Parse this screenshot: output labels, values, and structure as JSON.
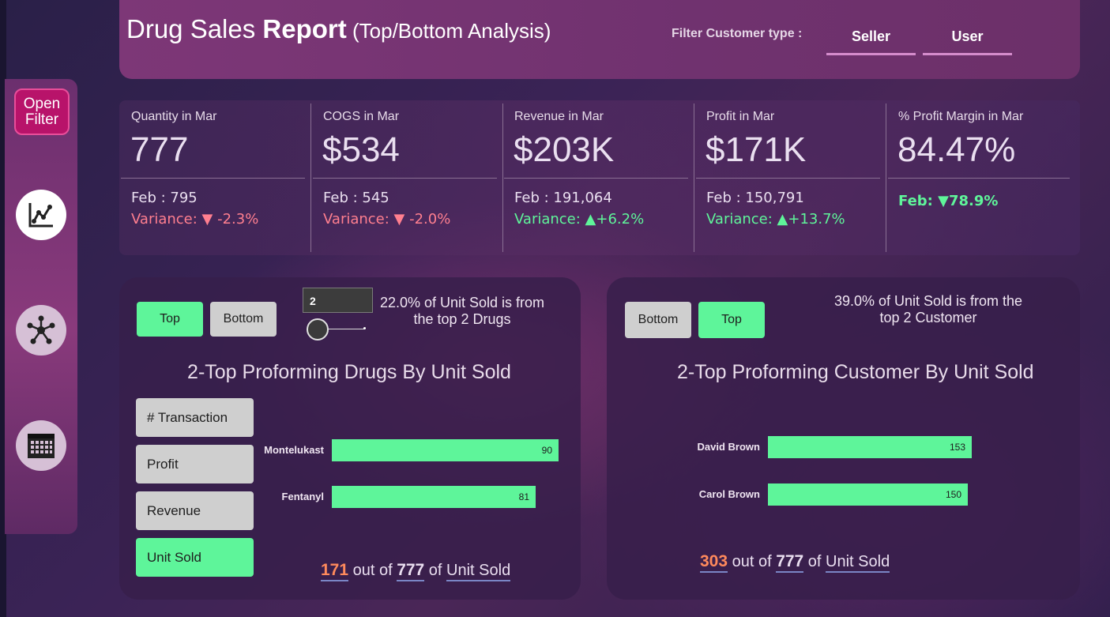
{
  "header": {
    "title_main": "Drug Sales ",
    "title_bold": "Report",
    "title_sub": " (Top/Bottom Analysis)",
    "filter_label": "Filter Customer type :",
    "customer_types": [
      "Seller",
      "User"
    ]
  },
  "sidebar": {
    "open_filter_label": "Open Filter",
    "nav": [
      {
        "icon": "line-chart-icon"
      },
      {
        "icon": "network-icon"
      },
      {
        "icon": "calendar-icon"
      }
    ]
  },
  "kpis": [
    {
      "label": "Quantity in Mar",
      "value": "777",
      "prev": "Feb : 795",
      "variance": "Variance: ▼ -2.3%",
      "trend": "down"
    },
    {
      "label": "COGS in Mar",
      "value": "$534",
      "prev": "Feb : 545",
      "variance": "Variance: ▼ -2.0%",
      "trend": "down"
    },
    {
      "label": "Revenue in Mar",
      "value": "$203K",
      "prev": "Feb : 191,064",
      "variance": "Variance: ▲+6.2%",
      "trend": "up"
    },
    {
      "label": "Profit in Mar",
      "value": "$171K",
      "prev": "Feb : 150,791",
      "variance": "Variance: ▲+13.7%",
      "trend": "up"
    },
    {
      "label": "% Profit Margin in Mar",
      "value": "84.47%",
      "prev": "",
      "variance": "Feb: ▼78.9%",
      "trend": "up"
    }
  ],
  "drugs_panel": {
    "top_label": "Top",
    "bottom_label": "Bottom",
    "n_value": "2",
    "slider_fraction": 0.0,
    "note": "22.0% of Unit Sold is from the top 2 Drugs",
    "chart_title": "2-Top Proforming Drugs By Unit Sold",
    "metrics": [
      "# Transaction",
      "Profit",
      "Revenue",
      "Unit Sold"
    ],
    "active_metric": "Unit Sold",
    "summary": {
      "part": "171",
      "out_of": " out of ",
      "total": "777",
      "of": " of ",
      "measure": "Unit Sold"
    }
  },
  "customer_panel": {
    "bottom_label": "Bottom",
    "top_label": "Top",
    "note": "39.0% of Unit Sold is from the top 2 Customer",
    "chart_title": "2-Top Proforming Customer By Unit Sold",
    "summary": {
      "part": "303",
      "out_of": " out of ",
      "total": "777",
      "of": " of ",
      "measure": "Unit Sold"
    }
  },
  "chart_data": [
    {
      "type": "bar",
      "orientation": "horizontal",
      "title": "2-Top Proforming Drugs By Unit Sold",
      "categories": [
        "Montelukast",
        "Fentanyl"
      ],
      "values": [
        90,
        81
      ],
      "xlim": [
        0,
        90
      ]
    },
    {
      "type": "bar",
      "orientation": "horizontal",
      "title": "2-Top Proforming Customer By Unit Sold",
      "categories": [
        "David Brown",
        "Carol Brown"
      ],
      "values": [
        153,
        150
      ],
      "xlim": [
        0,
        153
      ]
    }
  ],
  "colors": {
    "accent_green": "#5ef59a",
    "negative": "#ff7f8f",
    "highlight_orange": "#ff8a5c",
    "filter_button": "#b8136a"
  }
}
